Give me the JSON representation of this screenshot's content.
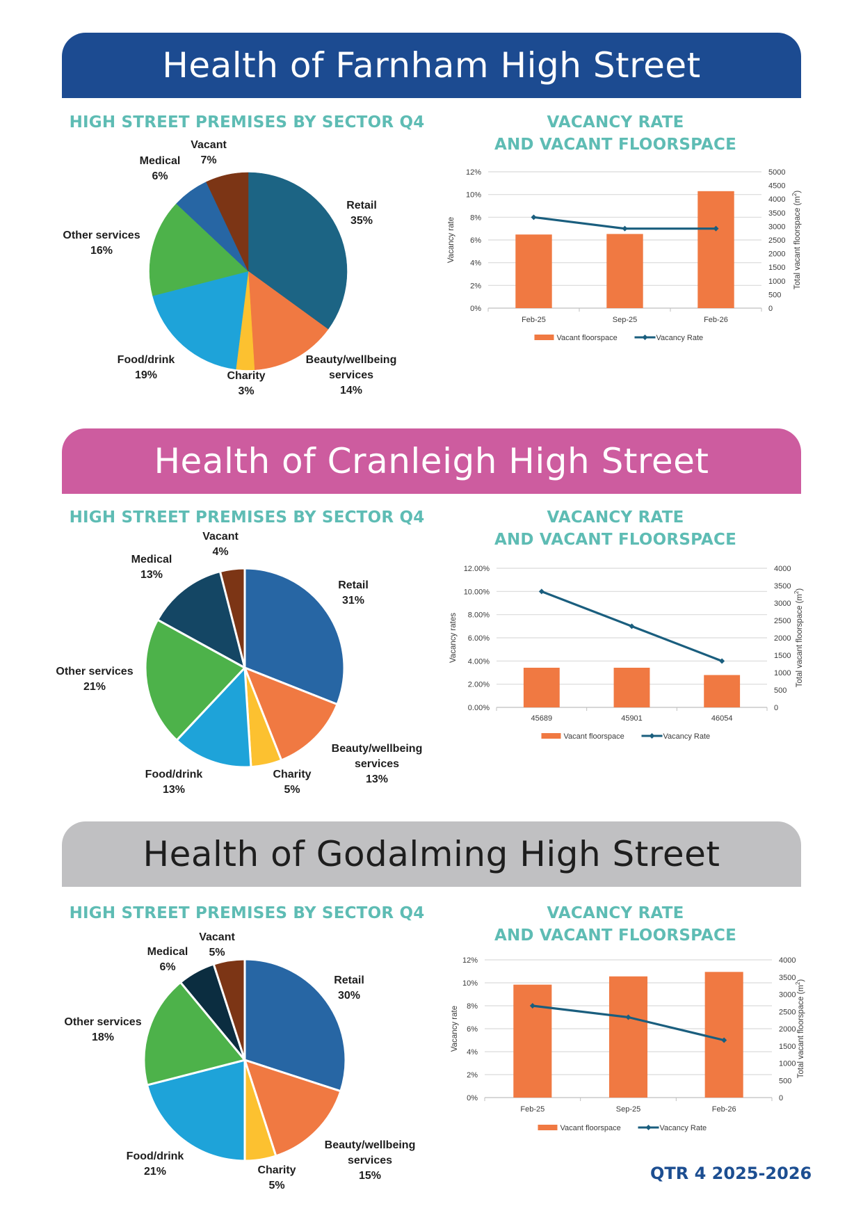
{
  "footer": {
    "period": "QTR 4 2025-2026"
  },
  "sections": [
    {
      "title": "Health of Farnham High Street",
      "band_color": "#1c4b91",
      "title_color": "#ffffff",
      "pie_title": "HIGH STREET PREMISES BY SECTOR Q4",
      "bar_title_line1": "VACANCY RATE",
      "bar_title_line2": "AND VACANT FLOORSPACE"
    },
    {
      "title": "Health of Cranleigh High Street",
      "band_color": "#cd5c9f",
      "title_color": "#ffffff",
      "pie_title": "HIGH STREET PREMISES BY SECTOR Q4",
      "bar_title_line1": "VACANCY RATE",
      "bar_title_line2": "AND VACANT FLOORSPACE"
    },
    {
      "title": "Health of Godalming High Street",
      "band_color": "#c0c0c2",
      "title_color": "#1e1e1e",
      "pie_title": "HIGH STREET PREMISES BY SECTOR Q4",
      "bar_title_line1": "VACANCY RATE",
      "bar_title_line2": "AND VACANT FLOORSPACE"
    }
  ],
  "chart_data": [
    {
      "type": "pie",
      "title": "HIGH STREET PREMISES BY SECTOR Q4",
      "town": "Farnham",
      "slices": [
        {
          "label": "Retail",
          "label_lines": [
            "Retail"
          ],
          "value": 35,
          "text": "35%",
          "color": "#1c6484"
        },
        {
          "label": "Beauty/wellbeing services",
          "label_lines": [
            "Beauty/wellbeing",
            "services"
          ],
          "value": 14,
          "text": "14%",
          "color": "#f07942"
        },
        {
          "label": "Charity",
          "label_lines": [
            "Charity"
          ],
          "value": 3,
          "text": "3%",
          "color": "#fcc130"
        },
        {
          "label": "Food/drink",
          "label_lines": [
            "Food/drink"
          ],
          "value": 19,
          "text": "19%",
          "color": "#1ea3d9"
        },
        {
          "label": "Other services",
          "label_lines": [
            "Other services"
          ],
          "value": 16,
          "text": "16%",
          "color": "#4db24a"
        },
        {
          "label": "Medical",
          "label_lines": [
            "Medical"
          ],
          "value": 6,
          "text": "6%",
          "color": "#2766a4"
        },
        {
          "label": "Vacant",
          "label_lines": [
            "Vacant"
          ],
          "value": 7,
          "text": "7%",
          "color": "#7c3515"
        }
      ]
    },
    {
      "type": "bar",
      "title": "VACANCY RATE AND VACANT FLOORSPACE",
      "town": "Farnham",
      "categories": [
        "Feb-25",
        "Sep-25",
        "Feb-26"
      ],
      "series": [
        {
          "name": "Vacant floorspace",
          "kind": "bar",
          "axis": "right",
          "color": "#f07942",
          "values": [
            2700,
            2720,
            4290
          ]
        },
        {
          "name": "Vacancy Rate",
          "kind": "line",
          "axis": "left",
          "color": "#1a5e7e",
          "values": [
            8,
            7,
            7
          ]
        }
      ],
      "ylabel": "Vacancy rate",
      "y2label": "Total vacant floorspace (m",
      "y2label_sup": "2",
      "y2label_end": ")",
      "ylim": [
        0,
        12
      ],
      "yticks": [
        "0%",
        "2%",
        "4%",
        "6%",
        "8%",
        "10%",
        "12%"
      ],
      "y2lim": [
        0,
        5000
      ],
      "y2ticks": [
        "0",
        "500",
        "1000",
        "1500",
        "2000",
        "2500",
        "3000",
        "3500",
        "4000",
        "4500",
        "5000"
      ],
      "grid": true,
      "legend": "bottom"
    },
    {
      "type": "pie",
      "title": "HIGH STREET PREMISES BY SECTOR Q4",
      "town": "Cranleigh",
      "slices": [
        {
          "label": "Retail",
          "label_lines": [
            "Retail"
          ],
          "value": 31,
          "text": "31%",
          "color": "#2766a4"
        },
        {
          "label": "Beauty/wellbeing services",
          "label_lines": [
            "Beauty/wellbeing",
            "services"
          ],
          "value": 13,
          "text": "13%",
          "color": "#f07942"
        },
        {
          "label": "Charity",
          "label_lines": [
            "Charity"
          ],
          "value": 5,
          "text": "5%",
          "color": "#fcc130"
        },
        {
          "label": "Food/drink",
          "label_lines": [
            "Food/drink"
          ],
          "value": 13,
          "text": "13%",
          "color": "#1ea3d9"
        },
        {
          "label": "Other services",
          "label_lines": [
            "Other services"
          ],
          "value": 21,
          "text": "21%",
          "color": "#4db24a"
        },
        {
          "label": "Medical",
          "label_lines": [
            "Medical"
          ],
          "value": 13,
          "text": "13%",
          "color": "#144664"
        },
        {
          "label": "Vacant",
          "label_lines": [
            "Vacant"
          ],
          "value": 4,
          "text": "4%",
          "color": "#7c3515"
        }
      ]
    },
    {
      "type": "bar",
      "title": "VACANCY RATE AND VACANT FLOORSPACE",
      "town": "Cranleigh",
      "categories": [
        "45689",
        "45901",
        "46054"
      ],
      "series": [
        {
          "name": "Vacant floorspace",
          "kind": "bar",
          "axis": "right",
          "color": "#f07942",
          "values": [
            1140,
            1140,
            930
          ]
        },
        {
          "name": "Vacancy Rate",
          "kind": "line",
          "axis": "left",
          "color": "#1a5e7e",
          "values": [
            10,
            7,
            4
          ]
        }
      ],
      "ylabel": "Vacancy rates",
      "y2label": "Total vacant floorspace (m",
      "y2label_sup": "2",
      "y2label_end": ")",
      "ylim": [
        0,
        12
      ],
      "yticks": [
        "0.00%",
        "2.00%",
        "4.00%",
        "6.00%",
        "8.00%",
        "10.00%",
        "12.00%"
      ],
      "y2lim": [
        0,
        4000
      ],
      "y2ticks": [
        "0",
        "500",
        "1000",
        "1500",
        "2000",
        "2500",
        "3000",
        "3500",
        "4000"
      ],
      "grid": true,
      "legend": "bottom"
    },
    {
      "type": "pie",
      "title": "HIGH STREET PREMISES BY SECTOR Q4",
      "town": "Godalming",
      "slices": [
        {
          "label": "Retail",
          "label_lines": [
            "Retail"
          ],
          "value": 30,
          "text": "30%",
          "color": "#2766a4"
        },
        {
          "label": "Beauty/wellbeing services",
          "label_lines": [
            "Beauty/wellbeing",
            "services"
          ],
          "value": 15,
          "text": "15%",
          "color": "#f07942"
        },
        {
          "label": "Charity",
          "label_lines": [
            "Charity"
          ],
          "value": 5,
          "text": "5%",
          "color": "#fcc130"
        },
        {
          "label": "Food/drink",
          "label_lines": [
            "Food/drink"
          ],
          "value": 21,
          "text": "21%",
          "color": "#1ea3d9"
        },
        {
          "label": "Other services",
          "label_lines": [
            "Other services"
          ],
          "value": 18,
          "text": "18%",
          "color": "#4db24a"
        },
        {
          "label": "Medical",
          "label_lines": [
            "Medical"
          ],
          "value": 6,
          "text": "6%",
          "color": "#0b2d40"
        },
        {
          "label": "Vacant",
          "label_lines": [
            "Vacant"
          ],
          "value": 5,
          "text": "5%",
          "color": "#7c3515"
        }
      ]
    },
    {
      "type": "bar",
      "title": "VACANCY RATE AND VACANT FLOORSPACE",
      "town": "Godalming",
      "categories": [
        "Feb-25",
        "Sep-25",
        "Feb-26"
      ],
      "series": [
        {
          "name": "Vacant floorspace",
          "kind": "bar",
          "axis": "right",
          "color": "#f07942",
          "values": [
            3280,
            3520,
            3650
          ]
        },
        {
          "name": "Vacancy Rate",
          "kind": "line",
          "axis": "left",
          "color": "#1a5e7e",
          "values": [
            8,
            7,
            5
          ]
        }
      ],
      "ylabel": "Vacancy rate",
      "y2label": "Total vacant floorspace (m",
      "y2label_sup": "2",
      "y2label_end": ")",
      "ylim": [
        0,
        12
      ],
      "yticks": [
        "0%",
        "2%",
        "4%",
        "6%",
        "8%",
        "10%",
        "12%"
      ],
      "y2lim": [
        0,
        4000
      ],
      "y2ticks": [
        "0",
        "500",
        "1000",
        "1500",
        "2000",
        "2500",
        "3000",
        "3500",
        "4000"
      ],
      "grid": true,
      "legend": "bottom"
    }
  ]
}
